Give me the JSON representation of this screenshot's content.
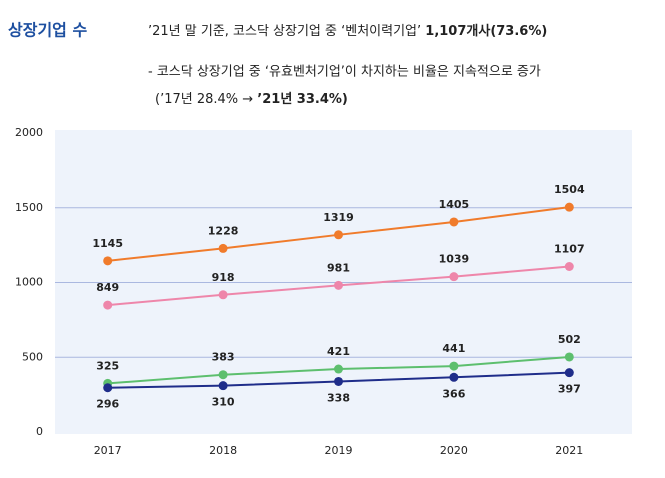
{
  "header": {
    "title": "상장기업 수",
    "line1": "’21년 말 기준, 코스닥 상장기업 중 ‘벤처이력기업’ ",
    "line1_bold": "1,107개사(73.6%)",
    "line2": "- 코스닥 상장기업 중 ‘유효벤처기업’이 차지하는 비율은 지속적으로 증가",
    "line3": "(’17년 28.4% → ",
    "line3_bold": "’21년 33.4%)"
  },
  "chart_data": {
    "type": "line",
    "categories": [
      "2017",
      "2018",
      "2019",
      "2020",
      "2021"
    ],
    "series": [
      {
        "color": "#f07b2b",
        "values": [
          1145,
          1228,
          1319,
          1405,
          1504
        ]
      },
      {
        "color": "#ee86aa",
        "values": [
          849,
          918,
          981,
          1039,
          1107
        ]
      },
      {
        "color": "#5dbf6e",
        "values": [
          325,
          383,
          421,
          441,
          502
        ]
      },
      {
        "color": "#1f2d8a",
        "values": [
          296,
          310,
          338,
          366,
          397
        ]
      }
    ],
    "ylim": [
      0,
      2000
    ],
    "yticks": [
      0,
      500,
      1000,
      1500,
      2000
    ],
    "grid": true
  }
}
